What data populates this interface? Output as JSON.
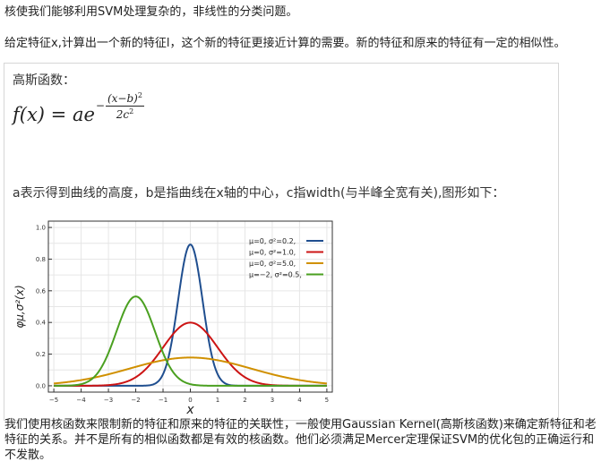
{
  "paragraphs": {
    "intro": "核使我们能够利用SVM处理复杂的，非线性的分类问题。",
    "given": "给定特征x,计算出一个新的特征l，这个新的特征更接近计算的需要。新的特征和原来的特征有一定的相似性。",
    "outro": "我们使用核函数来限制新的特征和原来的特征的关联性，一般使用Gaussian Kernel(高斯核函数)来确定新特征和老特征的关系。并不是所有的相似函数都是有效的核函数。他们必须满足Mercer定理保证SVM的优化包的正确运行和不发散。"
  },
  "gaussian": {
    "heading": "高斯函数：",
    "formula_lhs": "f(x) = ae",
    "formula_num": "(x−b)",
    "formula_num_pow": "2",
    "formula_den": "2c",
    "formula_den_pow": "2",
    "description": "a表示得到曲线的高度，b是指曲线在x轴的中心，c指width(与半峰全宽有关),图形如下："
  },
  "chart_data": {
    "type": "line",
    "xlabel": "x",
    "ylabel": "φμ,σ²(x)",
    "xlim": [
      -5.2,
      5.2
    ],
    "ylim": [
      -0.04,
      1.04
    ],
    "xticks": [
      "−5",
      "−4",
      "−3",
      "−2",
      "−1",
      "0",
      "1",
      "2",
      "3",
      "4",
      "5"
    ],
    "yticks": [
      "0.0",
      "0.2",
      "0.4",
      "0.6",
      "0.8",
      "1.0"
    ],
    "grid": true,
    "legend_position": "top-right",
    "series": [
      {
        "name": "μ=0,   σ²=0.2,",
        "mu": 0,
        "sigma2": 0.2,
        "color": "#1f4e8f",
        "peak": 0.892
      },
      {
        "name": "μ=0,   σ²=1.0,",
        "mu": 0,
        "sigma2": 1.0,
        "color": "#cc1414",
        "peak": 0.399
      },
      {
        "name": "μ=0,   σ²=5.0,",
        "mu": 0,
        "sigma2": 5.0,
        "color": "#d09000",
        "peak": 0.178
      },
      {
        "name": "μ=−2,  σ²=0.5,",
        "mu": -2,
        "sigma2": 0.5,
        "color": "#4aa020",
        "peak": 0.564
      }
    ]
  }
}
